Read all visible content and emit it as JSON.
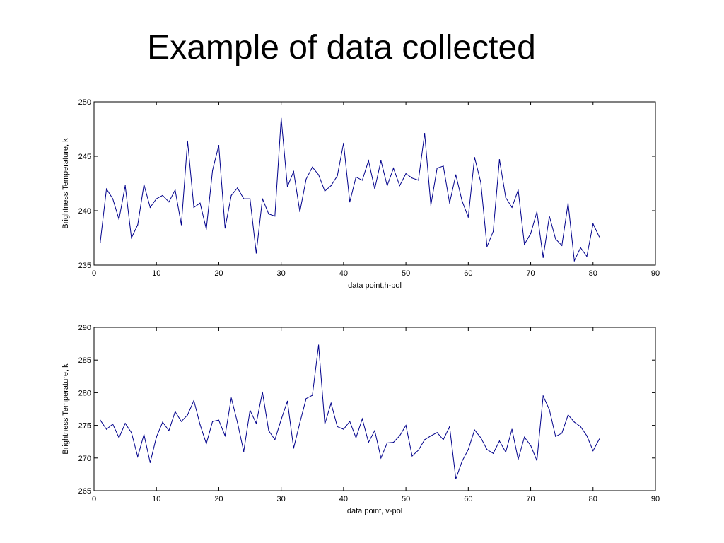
{
  "slide": {
    "title": "Example of data collected"
  },
  "chart_data": [
    {
      "type": "line",
      "xlabel": "data point,h-pol",
      "ylabel": "Brightness Temperature, k",
      "xlim": [
        0,
        90
      ],
      "ylim": [
        235,
        250
      ],
      "xticks": [
        0,
        10,
        20,
        30,
        40,
        50,
        60,
        70,
        80,
        90
      ],
      "yticks": [
        235,
        240,
        245,
        250
      ],
      "grid": false,
      "line_color": "#00008b",
      "x": [
        1,
        2,
        3,
        4,
        5,
        6,
        7,
        8,
        9,
        10,
        11,
        12,
        13,
        14,
        15,
        16,
        17,
        18,
        19,
        20,
        21,
        22,
        23,
        24,
        25,
        26,
        27,
        28,
        29,
        30,
        31,
        32,
        33,
        34,
        35,
        36,
        37,
        38,
        39,
        40,
        41,
        42,
        43,
        44,
        45,
        46,
        47,
        48,
        49,
        50,
        51,
        52,
        53,
        54,
        55,
        56,
        57,
        58,
        59,
        60,
        61,
        62,
        63,
        64,
        65,
        66,
        67,
        68,
        69,
        70,
        71,
        72,
        73,
        74,
        75,
        76,
        77,
        78,
        79,
        80,
        81
      ],
      "y": [
        237.1,
        242.0,
        241.1,
        239.2,
        242.3,
        237.5,
        238.7,
        242.4,
        240.3,
        241.1,
        241.4,
        240.8,
        241.9,
        238.7,
        246.4,
        240.3,
        240.7,
        238.3,
        243.7,
        246.0,
        238.4,
        241.4,
        242.1,
        241.1,
        241.1,
        236.1,
        241.1,
        239.7,
        239.5,
        248.5,
        242.2,
        243.6,
        239.9,
        242.9,
        244.0,
        243.3,
        241.8,
        242.3,
        243.2,
        246.2,
        240.8,
        243.1,
        242.8,
        244.6,
        242.0,
        244.6,
        242.3,
        243.9,
        242.3,
        243.4,
        243.0,
        242.8,
        247.1,
        240.5,
        243.9,
        244.1,
        240.7,
        243.3,
        240.9,
        239.4,
        244.9,
        242.6,
        236.7,
        238.1,
        244.7,
        241.2,
        240.3,
        241.9,
        236.9,
        237.9,
        239.9,
        235.7,
        239.5,
        237.4,
        236.8,
        240.7,
        235.4,
        236.6,
        235.8,
        238.8,
        237.6
      ]
    },
    {
      "type": "line",
      "xlabel": "data point, v-pol",
      "ylabel": "Brightness Temperature, k",
      "xlim": [
        0,
        90
      ],
      "ylim": [
        265,
        290
      ],
      "xticks": [
        0,
        10,
        20,
        30,
        40,
        50,
        60,
        70,
        80,
        90
      ],
      "yticks": [
        265,
        270,
        275,
        280,
        285,
        290
      ],
      "grid": false,
      "line_color": "#00008b",
      "x": [
        1,
        2,
        3,
        4,
        5,
        6,
        7,
        8,
        9,
        10,
        11,
        12,
        13,
        14,
        15,
        16,
        17,
        18,
        19,
        20,
        21,
        22,
        23,
        24,
        25,
        26,
        27,
        28,
        29,
        30,
        31,
        32,
        33,
        34,
        35,
        36,
        37,
        38,
        39,
        40,
        41,
        42,
        43,
        44,
        45,
        46,
        47,
        48,
        49,
        50,
        51,
        52,
        53,
        54,
        55,
        56,
        57,
        58,
        59,
        60,
        61,
        62,
        63,
        64,
        65,
        66,
        67,
        68,
        69,
        70,
        71,
        72,
        73,
        74,
        75,
        76,
        77,
        78,
        79,
        80,
        81
      ],
      "y": [
        275.8,
        274.4,
        275.2,
        273.1,
        275.3,
        273.9,
        270.2,
        273.6,
        269.3,
        273.2,
        275.5,
        274.2,
        277.1,
        275.6,
        276.6,
        278.8,
        275.1,
        272.2,
        275.6,
        275.8,
        273.4,
        279.2,
        275.4,
        271.0,
        277.3,
        275.3,
        280.1,
        274.2,
        272.8,
        275.9,
        278.7,
        271.5,
        275.4,
        279.1,
        279.6,
        287.3,
        275.2,
        278.4,
        274.8,
        274.4,
        275.6,
        273.1,
        276.0,
        272.4,
        274.2,
        270.0,
        272.3,
        272.4,
        273.4,
        275.0,
        270.3,
        271.2,
        272.8,
        273.4,
        273.9,
        272.8,
        274.8,
        266.8,
        269.5,
        271.3,
        274.3,
        273.1,
        271.3,
        270.7,
        272.6,
        270.9,
        274.4,
        269.8,
        273.2,
        271.9,
        269.6,
        279.5,
        277.4,
        273.3,
        273.8,
        276.6,
        275.5,
        274.8,
        273.4,
        271.1,
        272.9
      ]
    }
  ]
}
